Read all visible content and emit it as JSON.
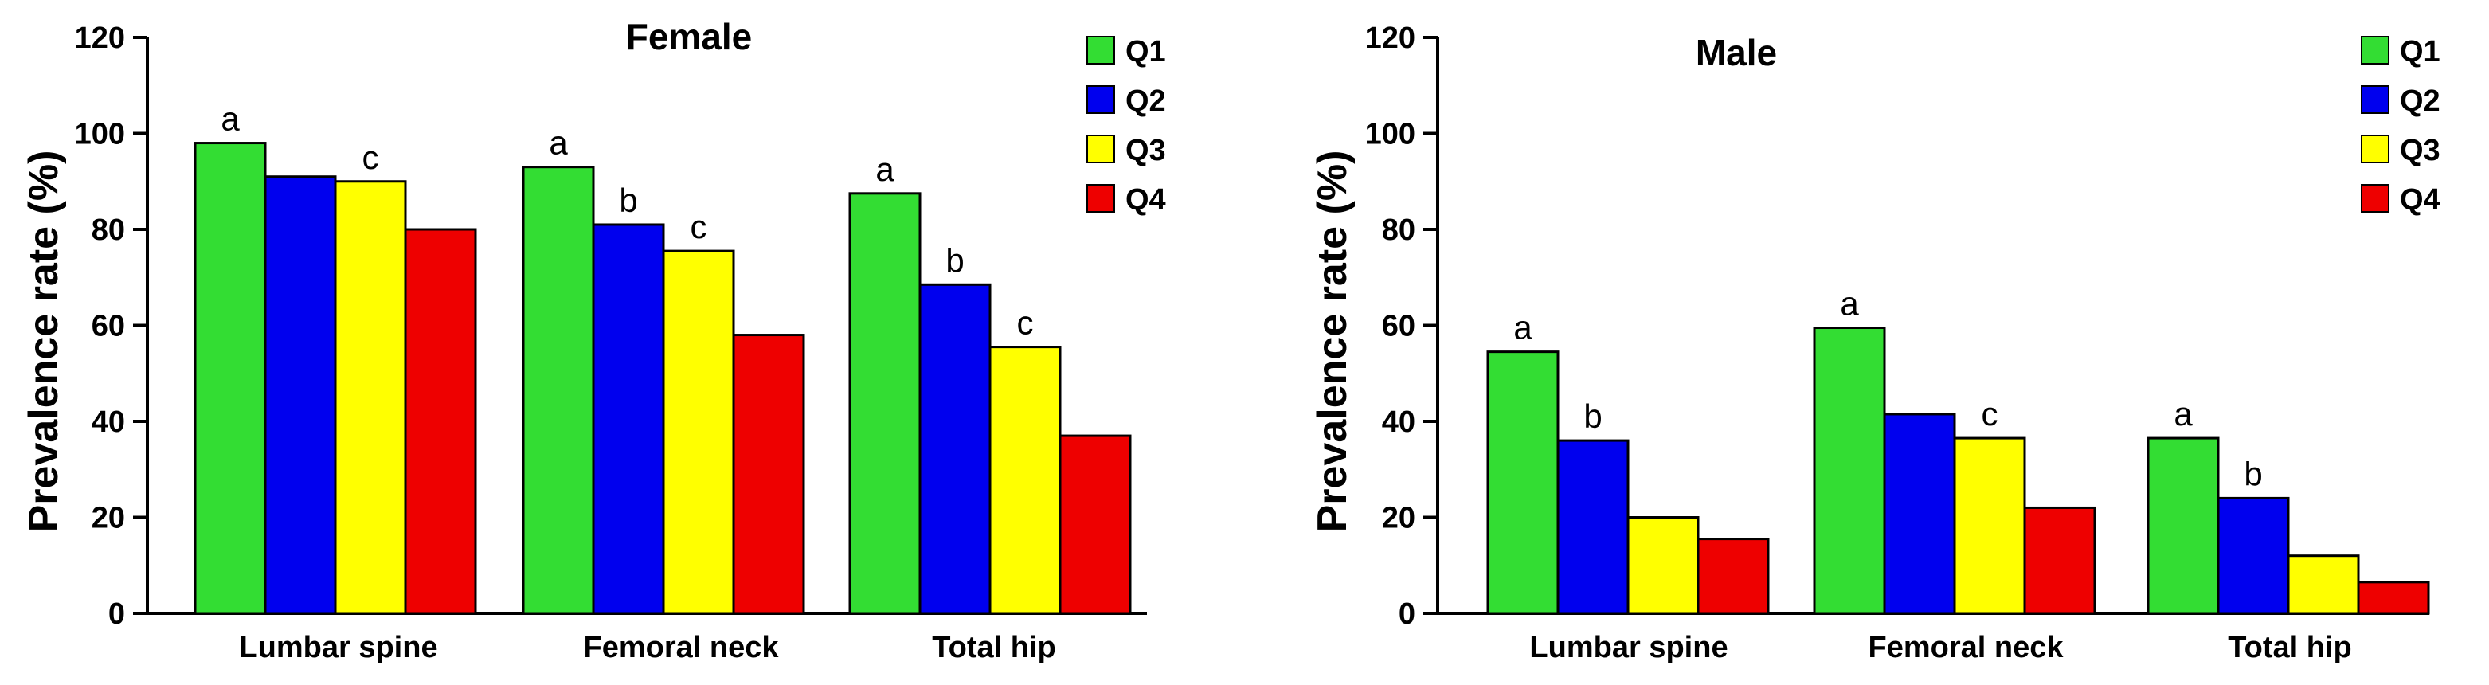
{
  "chart_data": [
    {
      "type": "bar",
      "title": "Female",
      "xlabel": "",
      "ylabel": "Prevalence rate (%)",
      "ylim": [
        0,
        120
      ],
      "yticks": [
        0,
        20,
        40,
        60,
        80,
        100,
        120
      ],
      "grid": false,
      "legend_position": "top-right",
      "categories": [
        "Lumbar spine",
        "Femoral neck",
        "Total hip"
      ],
      "series": [
        {
          "name": "Q1",
          "color": "#33dd33",
          "values": [
            98,
            93,
            87.5
          ],
          "labels": [
            "a",
            "a",
            "a"
          ]
        },
        {
          "name": "Q2",
          "color": "#0000ee",
          "values": [
            91,
            81,
            68.5
          ],
          "labels": [
            "",
            "b",
            "b"
          ]
        },
        {
          "name": "Q3",
          "color": "#ffff00",
          "values": [
            90,
            75.5,
            55.5
          ],
          "labels": [
            "c",
            "c",
            "c"
          ]
        },
        {
          "name": "Q4",
          "color": "#ee0000",
          "values": [
            80,
            58,
            37
          ],
          "labels": [
            "",
            "",
            ""
          ]
        }
      ]
    },
    {
      "type": "bar",
      "title": "Male",
      "xlabel": "",
      "ylabel": "Prevalence rate (%)",
      "ylim": [
        0,
        120
      ],
      "yticks": [
        0,
        20,
        40,
        60,
        80,
        100,
        120
      ],
      "grid": false,
      "legend_position": "top-right",
      "categories": [
        "Lumbar spine",
        "Femoral neck",
        "Total hip"
      ],
      "series": [
        {
          "name": "Q1",
          "color": "#33dd33",
          "values": [
            54.5,
            59.5,
            36.5
          ],
          "labels": [
            "a",
            "a",
            "a"
          ]
        },
        {
          "name": "Q2",
          "color": "#0000ee",
          "values": [
            36,
            41.5,
            24
          ],
          "labels": [
            "b",
            "",
            "b"
          ]
        },
        {
          "name": "Q3",
          "color": "#ffff00",
          "values": [
            20,
            36.5,
            12
          ],
          "labels": [
            "",
            "c",
            ""
          ]
        },
        {
          "name": "Q4",
          "color": "#ee0000",
          "values": [
            15.5,
            22,
            6.5
          ],
          "labels": [
            "",
            "",
            ""
          ]
        }
      ]
    }
  ]
}
